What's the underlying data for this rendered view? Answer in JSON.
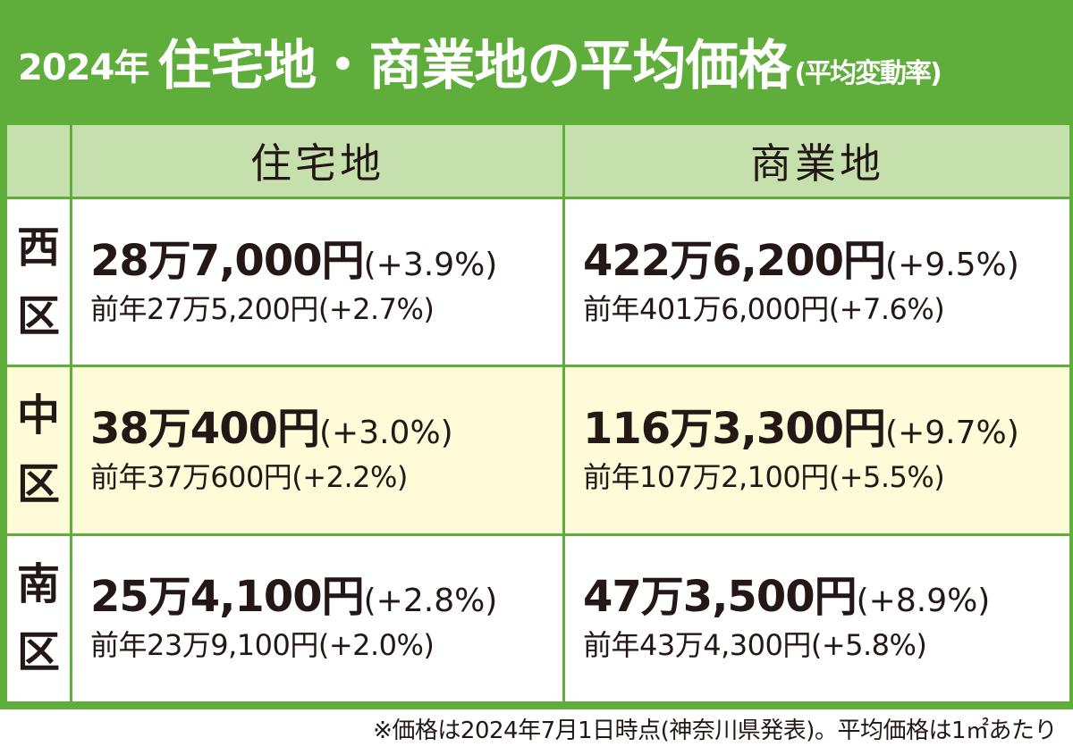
{
  "header": {
    "year": "2024年",
    "title": "住宅地・商業地の平均価格",
    "subtitle": "(平均変動率)",
    "bg_color": "#5fae3b"
  },
  "columns": {
    "residential": "住宅地",
    "commercial": "商業地"
  },
  "rows": [
    {
      "ward": [
        "西",
        "区"
      ],
      "residential": {
        "price": "28万7,000円",
        "change": "(+3.9%)",
        "prev": "前年27万5,200円(+2.7%)"
      },
      "commercial": {
        "price": "422万6,200円",
        "change": "(+9.5%)",
        "prev": "前年401万6,000円(+7.6%)"
      }
    },
    {
      "ward": [
        "中",
        "区"
      ],
      "residential": {
        "price": "38万400円",
        "change": "(+3.0%)",
        "prev": "前年37万600円(+2.2%)"
      },
      "commercial": {
        "price": "116万3,300円",
        "change": "(+9.7%)",
        "prev": "前年107万2,100円(+5.5%)"
      }
    },
    {
      "ward": [
        "南",
        "区"
      ],
      "residential": {
        "price": "25万4,100円",
        "change": "(+2.8%)",
        "prev": "前年23万9,100円(+2.0%)"
      },
      "commercial": {
        "price": "47万3,500円",
        "change": "(+8.9%)",
        "prev": "前年43万4,300円(+5.8%)"
      }
    }
  ],
  "note": "※価格は2024年7月1日時点(神奈川県発表)。平均価格は1㎡あたり"
}
